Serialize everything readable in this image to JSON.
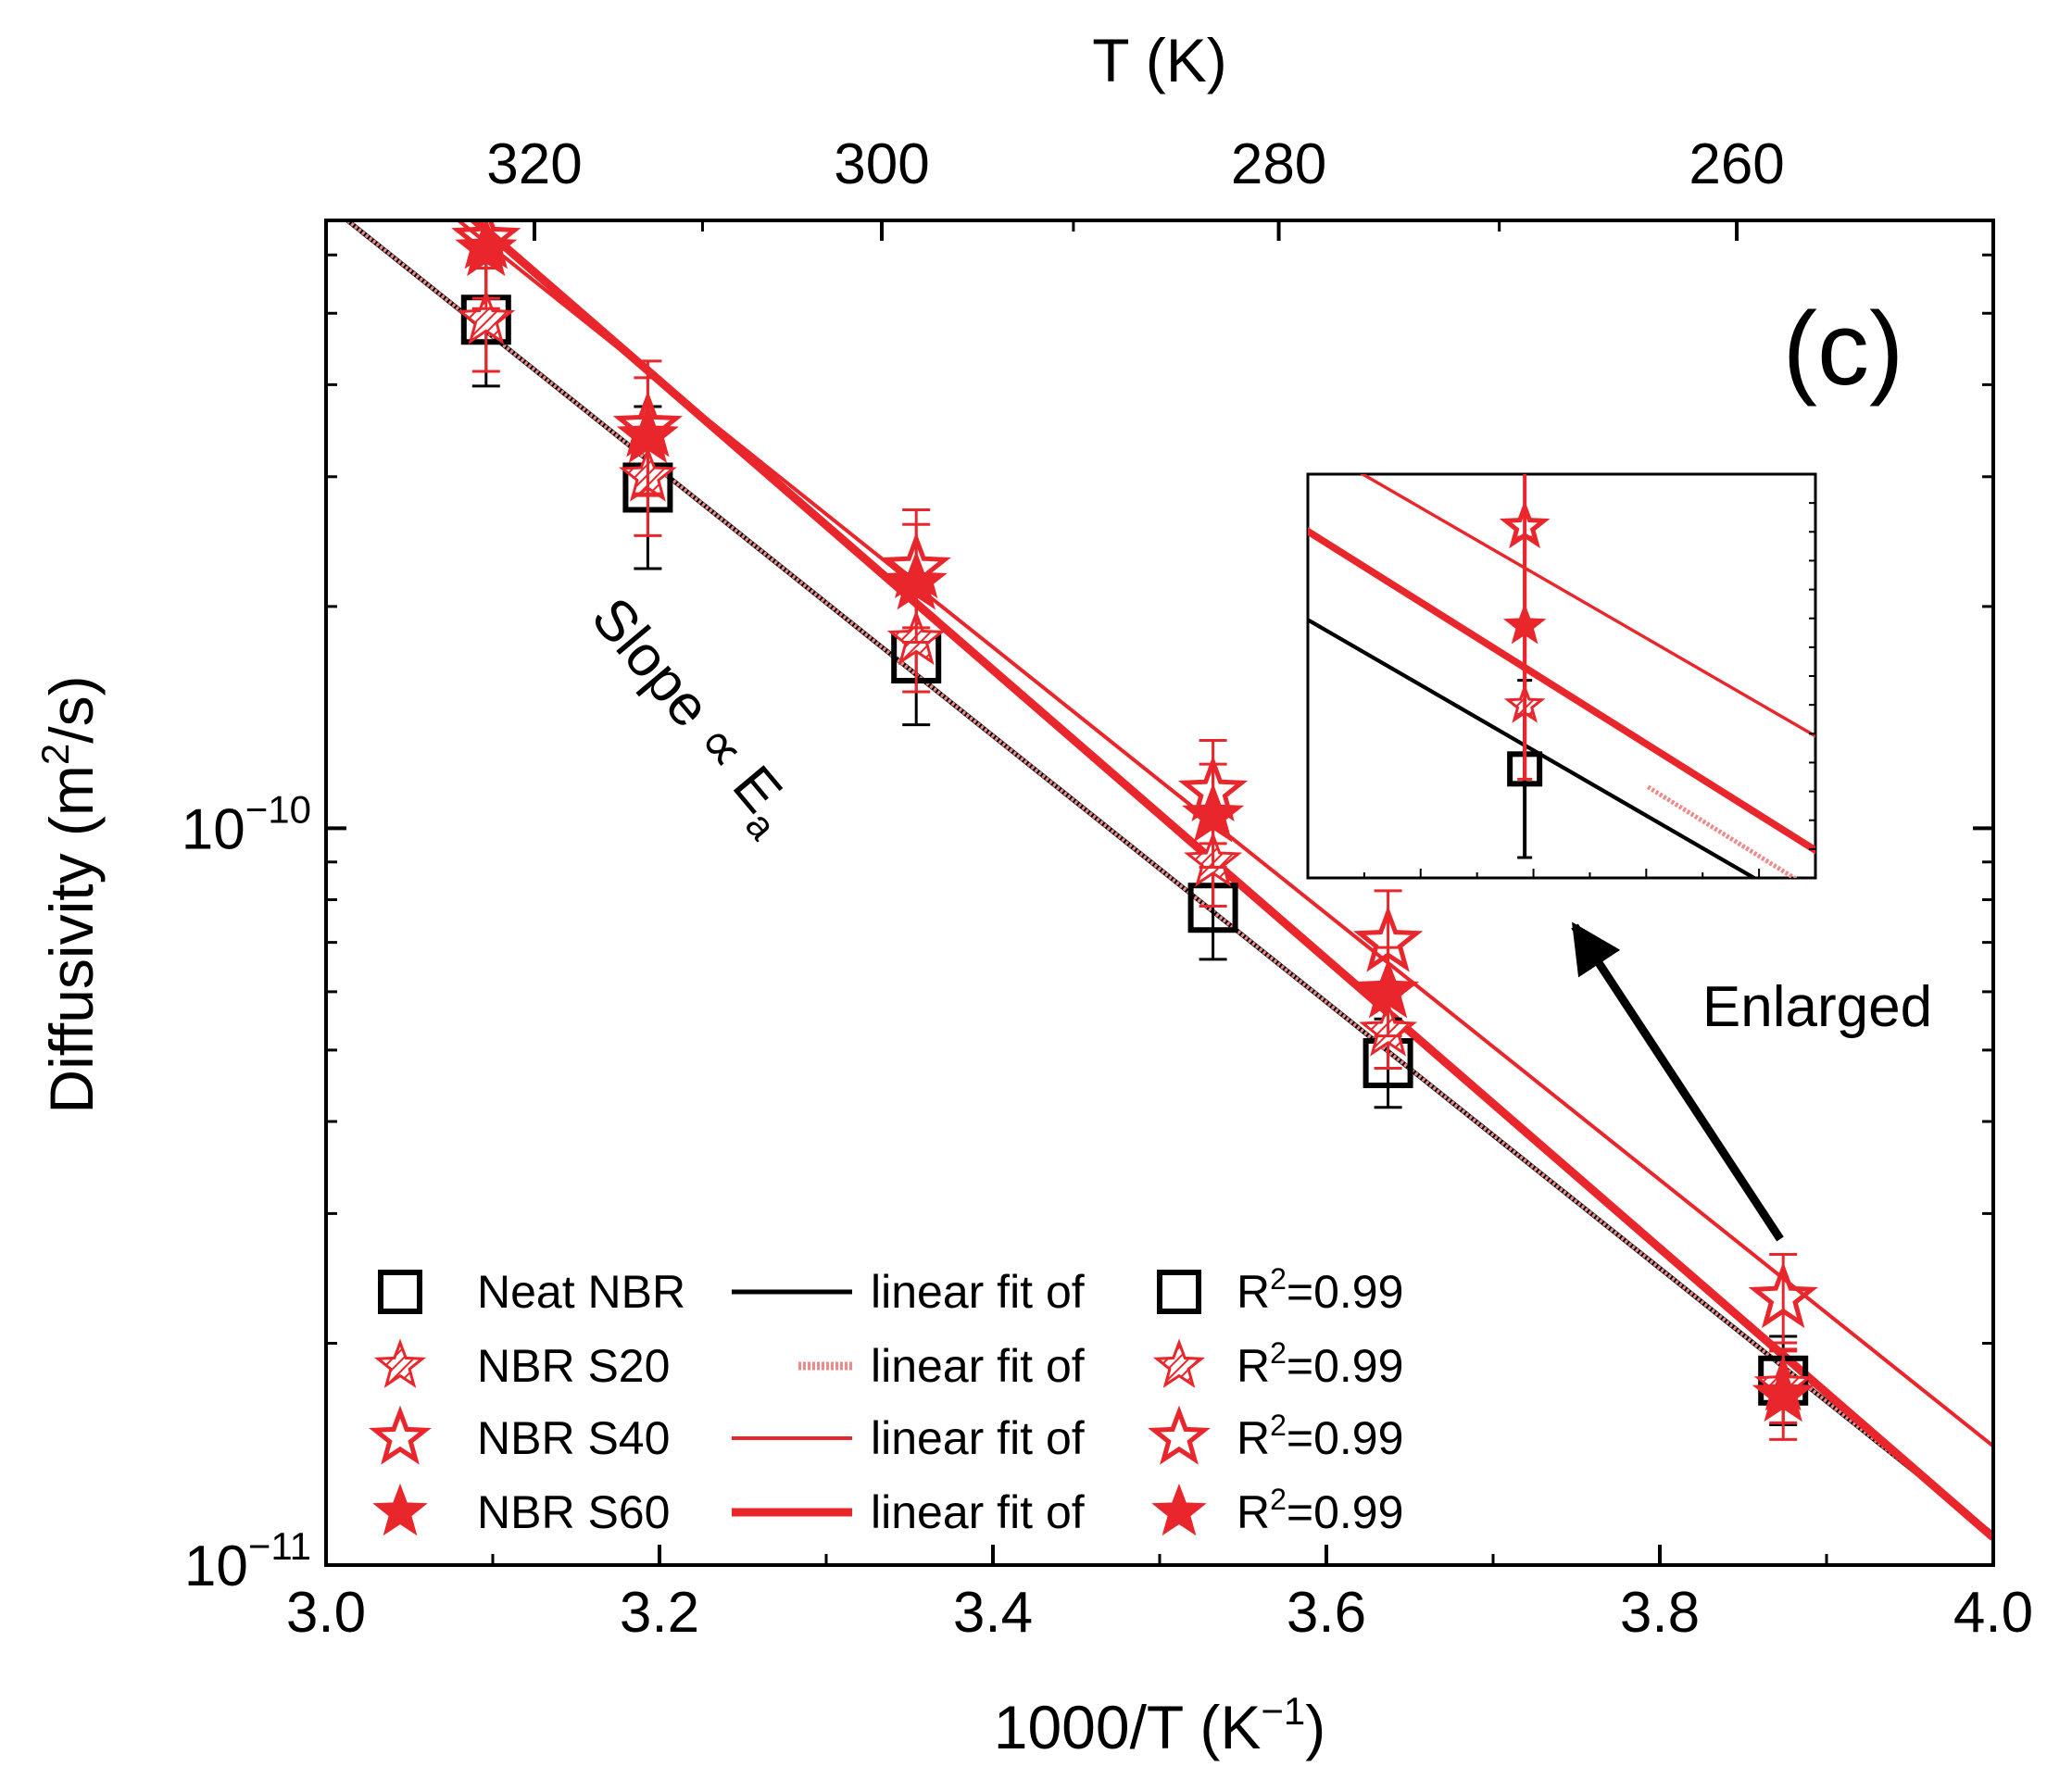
{
  "chart_data": {
    "type": "scatter",
    "panel_label": "(c)",
    "xlabel": "1000/T (K",
    "xlabel_sup": "−1",
    "xlabel_end": ")",
    "ylabel": "Diffusivity (m",
    "ylabel_sup": "2",
    "ylabel_end": "/s)",
    "top_xlabel": "T (K)",
    "xlim": [
      3.0,
      4.0
    ],
    "ylim_log10": [
      -11,
      -9.175
    ],
    "x_ticks": [
      3.0,
      3.2,
      3.4,
      3.6,
      3.8,
      4.0
    ],
    "x_tick_labels": [
      "3.0",
      "3.2",
      "3.4",
      "3.6",
      "3.8",
      "4.0"
    ],
    "top_ticks_T": [
      320,
      300,
      280,
      260
    ],
    "top_tick_labels": [
      "320",
      "300",
      "280",
      "260"
    ],
    "y_tick_labels": [
      {
        "base": "10",
        "exp": "−10",
        "log10": -10
      },
      {
        "base": "10",
        "exp": "−11",
        "log10": -11
      }
    ],
    "series": [
      {
        "name": "Neat NBR",
        "marker": "square-open",
        "color": "#000000",
        "x": [
          3.096,
          3.193,
          3.354,
          3.532,
          3.637,
          3.874
        ],
        "y": [
          4.9e-10,
          2.9e-10,
          1.7e-10,
          7.8e-11,
          4.8e-11,
          1.78e-11
        ],
        "err": [
          0.09,
          0.11,
          0.09,
          0.07,
          0.06,
          0.06
        ],
        "fit": {
          "x": [
            3.0,
            4.0
          ],
          "y": [
            7.05e-10,
            1.1e-11
          ],
          "width": 5,
          "style": "solid"
        },
        "r2": "=0.99"
      },
      {
        "name": "NBR S20",
        "marker": "star-open-hatched",
        "color": "#e8262b",
        "x": [
          3.096,
          3.193,
          3.354,
          3.532,
          3.637,
          3.874
        ],
        "y": [
          4.9e-10,
          3e-10,
          1.8e-10,
          9e-11,
          5.3e-11,
          1.75e-11
        ],
        "err": [
          0.07,
          0.08,
          0.07,
          0.06,
          0.05,
          0.05
        ],
        "fit": {
          "x": [
            3.0,
            4.0
          ],
          "y": [
            7.05e-10,
            1.1e-11
          ],
          "width": 4,
          "style": "hatched"
        },
        "r2": "=0.99"
      },
      {
        "name": "NBR S40",
        "marker": "star-open",
        "color": "#e8262b",
        "x": [
          3.096,
          3.193,
          3.354,
          3.532,
          3.637,
          3.874
        ],
        "y": [
          6.3e-10,
          3.5e-10,
          2.25e-10,
          1.12e-10,
          7e-11,
          2.3e-11
        ],
        "err": [
          0.08,
          0.09,
          0.08,
          0.07,
          0.07,
          0.06
        ],
        "fit": {
          "x": [
            3.0,
            4.0
          ],
          "y": [
            9.3e-10,
            1.45e-11
          ],
          "width": 4,
          "style": "solid"
        },
        "r2": "=0.99"
      },
      {
        "name": "NBR S60",
        "marker": "star-filled",
        "color": "#e8262b",
        "x": [
          3.096,
          3.193,
          3.354,
          3.532,
          3.637,
          3.874
        ],
        "y": [
          6.1e-10,
          3.4e-10,
          2.15e-10,
          1.04e-10,
          6e-11,
          1.7e-11
        ],
        "err": [
          0.08,
          0.08,
          0.08,
          0.07,
          0.06,
          0.06
        ],
        "fit": {
          "x": [
            3.0,
            4.0
          ],
          "y": [
            1e-09,
            1.09e-11
          ],
          "width": 9,
          "style": "solid"
        },
        "r2": "=0.99"
      }
    ],
    "legend": {
      "placement": "bottom-left",
      "fit_label": "linear fit of",
      "r2_base": "R",
      "r2_sup": "2"
    },
    "annotations": {
      "slope_text": "Slope ∝ E",
      "slope_sub": "a",
      "enlarged_text": "Enlarged"
    }
  }
}
